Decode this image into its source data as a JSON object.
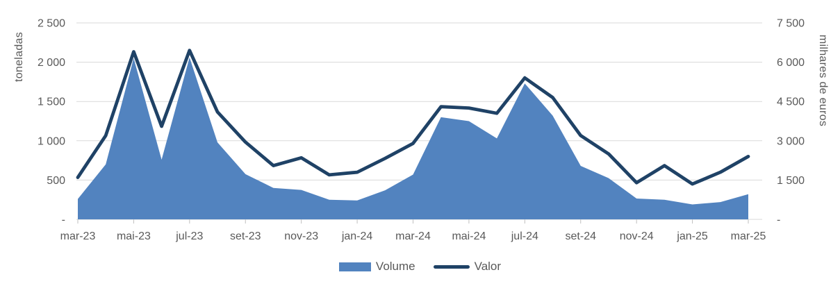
{
  "chart_data": {
    "type": "combo-area-line",
    "title": "",
    "categories": [
      "mar-23",
      "abr-23",
      "mai-23",
      "jun-23",
      "jul-23",
      "ago-23",
      "set-23",
      "out-23",
      "nov-23",
      "dez-23",
      "jan-24",
      "fev-24",
      "mar-24",
      "abr-24",
      "mai-24",
      "jun-24",
      "jul-24",
      "ago-24",
      "set-24",
      "out-24",
      "nov-24",
      "dez-24",
      "jan-25",
      "fev-25",
      "mar-25"
    ],
    "series": [
      {
        "name": "Volume",
        "type": "area",
        "y_axis": "left",
        "color": "#5283BF",
        "values": [
          260,
          700,
          2050,
          760,
          2060,
          980,
          575,
          400,
          375,
          250,
          240,
          370,
          570,
          1300,
          1250,
          1030,
          1730,
          1320,
          680,
          525,
          265,
          250,
          190,
          220,
          320
        ]
      },
      {
        "name": "Valor",
        "type": "line",
        "y_axis": "right",
        "color": "#1F4266",
        "values": [
          1600,
          3200,
          6400,
          3550,
          6450,
          4100,
          2950,
          2050,
          2350,
          1700,
          1800,
          2330,
          2900,
          4300,
          4250,
          4050,
          5400,
          4650,
          3200,
          2500,
          1400,
          2050,
          1350,
          1800,
          2400
        ]
      }
    ],
    "x_tick_labels": [
      "mar-23",
      "mai-23",
      "jul-23",
      "set-23",
      "nov-23",
      "jan-24",
      "mar-24",
      "mai-24",
      "jul-24",
      "set-24",
      "nov-24",
      "jan-25",
      "mar-25"
    ],
    "left_axis": {
      "title": "toneladas",
      "min": 0,
      "max": 2500,
      "tick_values": [
        0,
        500,
        1000,
        1500,
        2000,
        2500
      ],
      "tick_labels": [
        "-",
        "500",
        "1 000",
        "1 500",
        "2 000",
        "2 500"
      ]
    },
    "right_axis": {
      "title": "milhares de euros",
      "min": 0,
      "max": 7500,
      "tick_values": [
        0,
        1500,
        3000,
        4500,
        6000,
        7500
      ],
      "tick_labels": [
        "-",
        "1 500",
        "3 000",
        "4 500",
        "6 000",
        "7 500"
      ]
    },
    "legend": {
      "position": "bottom",
      "items": [
        {
          "label": "Volume"
        },
        {
          "label": "Valor"
        }
      ]
    },
    "layout_hints": {
      "grid": "horizontal",
      "gridline_color": "#D9D9D9",
      "tick_color": "#BFBFBF",
      "axis_text_color": "#595959",
      "background_color": "#FFFFFF"
    }
  }
}
